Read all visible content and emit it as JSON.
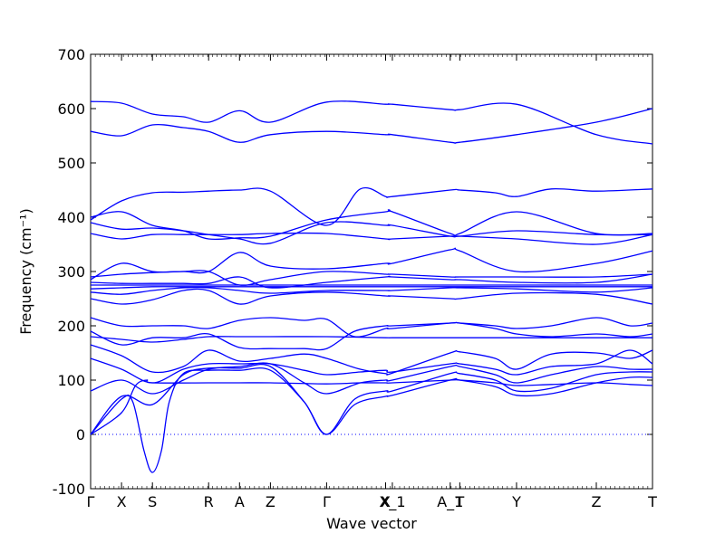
{
  "chart_data": {
    "type": "line",
    "xlabel": "Wave vector",
    "ylabel": "Frequency",
    "ylabel_unit": "(cm⁻¹)",
    "ylim": [
      -100,
      700
    ],
    "yticks": [
      -100,
      0,
      100,
      200,
      300,
      400,
      500,
      600,
      700
    ],
    "line_color": "#0000ff",
    "zero_line": {
      "y": 0,
      "style": "dotted",
      "color": "#0000ff"
    },
    "grid": false,
    "xticks": [
      {
        "label": "Γ",
        "x": 0.0
      },
      {
        "label": "X",
        "x": 0.055
      },
      {
        "label": "S",
        "x": 0.11
      },
      {
        "label": "R",
        "x": 0.21
      },
      {
        "label": "A",
        "x": 0.265
      },
      {
        "label": "Z",
        "x": 0.32
      },
      {
        "label": "Γ",
        "x": 0.42
      },
      {
        "label": "X",
        "x": 0.525
      },
      {
        "label": "X_1",
        "x": 0.537
      },
      {
        "label": "A_1",
        "x": 0.64
      },
      {
        "label": "T",
        "x": 0.657
      },
      {
        "label": "Y",
        "x": 0.758
      },
      {
        "label": "Z",
        "x": 0.9
      },
      {
        "label": "T",
        "x": 1.0
      }
    ],
    "series": [
      {
        "x": [
          0,
          0.055,
          0.08,
          0.1,
          0.11,
          0.21,
          0.265,
          0.32,
          0.42,
          0.48,
          0.525,
          0.537,
          0.64,
          0.657,
          0.72,
          0.758,
          0.82,
          0.9,
          0.96,
          1.0
        ],
        "values": [
          0,
          40,
          90,
          100,
          95,
          95,
          95,
          95,
          93,
          95,
          95,
          95,
          100,
          100,
          95,
          90,
          92,
          95,
          92,
          90
        ]
      },
      {
        "x": [
          0,
          0.055,
          0.075,
          0.095,
          0.11,
          0.126,
          0.14,
          0.165,
          0.21,
          0.265,
          0.32,
          0.38,
          0.42,
          0.47,
          0.525,
          0.537,
          0.64,
          0.657,
          0.72,
          0.758,
          0.82,
          0.9,
          0.96,
          1.0
        ],
        "values": [
          0,
          65,
          60,
          -30,
          -70,
          -30,
          60,
          112,
          118,
          118,
          118,
          60,
          0,
          55,
          70,
          72,
          100,
          100,
          88,
          72,
          75,
          95,
          105,
          105
        ]
      },
      {
        "x": [
          0,
          0.055,
          0.11,
          0.165,
          0.21,
          0.265,
          0.32,
          0.38,
          0.42,
          0.47,
          0.525,
          0.537,
          0.64,
          0.657,
          0.72,
          0.758,
          0.82,
          0.9,
          0.96,
          1.0
        ],
        "values": [
          0,
          70,
          55,
          110,
          122,
          122,
          125,
          60,
          0,
          65,
          80,
          80,
          112,
          112,
          100,
          80,
          85,
          110,
          115,
          115
        ]
      },
      {
        "x": [
          0,
          0.055,
          0.11,
          0.165,
          0.21,
          0.265,
          0.32,
          0.38,
          0.42,
          0.48,
          0.525,
          0.537,
          0.64,
          0.657,
          0.72,
          0.758,
          0.82,
          0.9,
          0.96,
          1.0
        ],
        "values": [
          80,
          100,
          75,
          100,
          120,
          125,
          130,
          95,
          75,
          95,
          100,
          100,
          125,
          125,
          110,
          95,
          110,
          125,
          120,
          120
        ]
      },
      {
        "x": [
          0,
          0.055,
          0.11,
          0.165,
          0.21,
          0.265,
          0.32,
          0.38,
          0.42,
          0.48,
          0.525,
          0.537,
          0.64,
          0.657,
          0.72,
          0.758,
          0.82,
          0.9,
          0.96,
          1.0
        ],
        "values": [
          140,
          120,
          95,
          120,
          130,
          130,
          130,
          118,
          110,
          115,
          118,
          115,
          130,
          130,
          120,
          110,
          125,
          130,
          155,
          130
        ]
      },
      {
        "x": [
          0,
          0.055,
          0.11,
          0.165,
          0.21,
          0.265,
          0.32,
          0.38,
          0.42,
          0.48,
          0.525,
          0.537,
          0.64,
          0.657,
          0.72,
          0.758,
          0.82,
          0.9,
          0.96,
          1.0
        ],
        "values": [
          165,
          145,
          115,
          125,
          155,
          135,
          140,
          148,
          140,
          120,
          112,
          113,
          150,
          152,
          140,
          120,
          148,
          150,
          140,
          155
        ]
      },
      {
        "x": [
          0,
          0.055,
          0.11,
          0.165,
          0.21,
          0.265,
          0.32,
          0.42,
          0.525,
          0.537,
          0.64,
          0.657,
          0.758,
          0.9,
          1.0
        ],
        "values": [
          180,
          175,
          170,
          175,
          180,
          180,
          180,
          180,
          178,
          178,
          178,
          178,
          178,
          178,
          178
        ]
      },
      {
        "x": [
          0,
          0.055,
          0.11,
          0.165,
          0.21,
          0.265,
          0.32,
          0.38,
          0.42,
          0.47,
          0.525,
          0.537,
          0.64,
          0.657,
          0.72,
          0.758,
          0.82,
          0.9,
          0.96,
          1.0
        ],
        "values": [
          190,
          165,
          178,
          178,
          185,
          160,
          158,
          158,
          158,
          190,
          200,
          200,
          205,
          205,
          195,
          185,
          180,
          185,
          180,
          185
        ]
      },
      {
        "x": [
          0,
          0.055,
          0.11,
          0.165,
          0.21,
          0.265,
          0.32,
          0.38,
          0.42,
          0.47,
          0.525,
          0.537,
          0.64,
          0.657,
          0.72,
          0.758,
          0.82,
          0.9,
          0.96,
          1.0
        ],
        "values": [
          215,
          200,
          200,
          200,
          195,
          210,
          215,
          210,
          212,
          180,
          195,
          195,
          205,
          205,
          200,
          195,
          200,
          215,
          200,
          205
        ]
      },
      {
        "x": [
          0,
          0.055,
          0.11,
          0.165,
          0.21,
          0.265,
          0.32,
          0.42,
          0.525,
          0.537,
          0.64,
          0.657,
          0.758,
          0.9,
          1.0
        ],
        "values": [
          250,
          240,
          248,
          265,
          265,
          240,
          255,
          262,
          255,
          255,
          250,
          250,
          260,
          258,
          240
        ]
      },
      {
        "x": [
          0,
          0.055,
          0.11,
          0.165,
          0.21,
          0.265,
          0.32,
          0.42,
          0.525,
          0.537,
          0.64,
          0.657,
          0.758,
          0.9,
          1.0
        ],
        "values": [
          262,
          258,
          265,
          270,
          270,
          265,
          260,
          265,
          265,
          265,
          270,
          270,
          268,
          262,
          270
        ]
      },
      {
        "x": [
          0,
          0.055,
          0.11,
          0.165,
          0.21,
          0.265,
          0.32,
          0.42,
          0.525,
          0.537,
          0.64,
          0.657,
          0.758,
          0.9,
          1.0
        ],
        "values": [
          268,
          270,
          272,
          272,
          272,
          272,
          272,
          272,
          272,
          272,
          272,
          272,
          272,
          272,
          272
        ]
      },
      {
        "x": [
          0,
          0.055,
          0.11,
          0.165,
          0.21,
          0.265,
          0.32,
          0.42,
          0.525,
          0.537,
          0.64,
          0.657,
          0.758,
          0.9,
          1.0
        ],
        "values": [
          275,
          275,
          275,
          275,
          275,
          275,
          275,
          275,
          275,
          275,
          275,
          275,
          275,
          275,
          275
        ]
      },
      {
        "x": [
          0,
          0.055,
          0.11,
          0.165,
          0.21,
          0.265,
          0.32,
          0.42,
          0.525,
          0.537,
          0.64,
          0.657,
          0.758,
          0.9,
          1.0
        ],
        "values": [
          280,
          278,
          278,
          278,
          278,
          290,
          270,
          280,
          290,
          290,
          285,
          285,
          280,
          280,
          295
        ]
      },
      {
        "x": [
          0,
          0.055,
          0.11,
          0.165,
          0.21,
          0.265,
          0.32,
          0.42,
          0.525,
          0.537,
          0.64,
          0.657,
          0.758,
          0.9,
          1.0
        ],
        "values": [
          290,
          295,
          298,
          300,
          300,
          275,
          285,
          300,
          295,
          295,
          290,
          290,
          290,
          290,
          295
        ]
      },
      {
        "x": [
          0,
          0.055,
          0.11,
          0.165,
          0.21,
          0.265,
          0.32,
          0.42,
          0.525,
          0.537,
          0.64,
          0.657,
          0.758,
          0.9,
          1.0
        ],
        "values": [
          285,
          315,
          300,
          300,
          300,
          335,
          310,
          305,
          315,
          315,
          340,
          338,
          300,
          315,
          338
        ]
      },
      {
        "x": [
          0,
          0.055,
          0.11,
          0.165,
          0.21,
          0.265,
          0.32,
          0.42,
          0.525,
          0.537,
          0.64,
          0.657,
          0.758,
          0.9,
          1.0
        ],
        "values": [
          370,
          360,
          368,
          368,
          368,
          368,
          370,
          370,
          360,
          360,
          365,
          365,
          375,
          368,
          368
        ]
      },
      {
        "x": [
          0,
          0.055,
          0.11,
          0.165,
          0.21,
          0.265,
          0.32,
          0.42,
          0.525,
          0.537,
          0.64,
          0.657,
          0.758,
          0.9,
          1.0
        ],
        "values": [
          390,
          378,
          380,
          375,
          368,
          360,
          352,
          390,
          385,
          385,
          365,
          365,
          360,
          350,
          368
        ]
      },
      {
        "x": [
          0,
          0.055,
          0.11,
          0.165,
          0.21,
          0.265,
          0.32,
          0.42,
          0.525,
          0.537,
          0.64,
          0.657,
          0.758,
          0.9,
          1.0
        ],
        "values": [
          400,
          410,
          385,
          375,
          360,
          362,
          365,
          395,
          410,
          410,
          370,
          370,
          410,
          370,
          370
        ]
      },
      {
        "x": [
          0,
          0.055,
          0.11,
          0.165,
          0.21,
          0.265,
          0.32,
          0.42,
          0.48,
          0.525,
          0.537,
          0.64,
          0.657,
          0.72,
          0.758,
          0.82,
          0.9,
          1.0
        ],
        "values": [
          395,
          430,
          445,
          446,
          448,
          450,
          448,
          385,
          452,
          438,
          438,
          450,
          450,
          445,
          438,
          452,
          448,
          452
        ]
      },
      {
        "x": [
          0,
          0.055,
          0.11,
          0.165,
          0.21,
          0.265,
          0.32,
          0.42,
          0.525,
          0.537,
          0.64,
          0.657,
          0.758,
          0.9,
          1.0
        ],
        "values": [
          558,
          550,
          570,
          565,
          558,
          538,
          552,
          558,
          552,
          552,
          538,
          538,
          552,
          575,
          600
        ]
      },
      {
        "x": [
          0,
          0.055,
          0.11,
          0.165,
          0.21,
          0.265,
          0.32,
          0.42,
          0.525,
          0.537,
          0.64,
          0.657,
          0.758,
          0.9,
          1.0
        ],
        "values": [
          613,
          610,
          590,
          585,
          575,
          596,
          575,
          612,
          608,
          608,
          598,
          598,
          608,
          552,
          535
        ]
      }
    ]
  }
}
